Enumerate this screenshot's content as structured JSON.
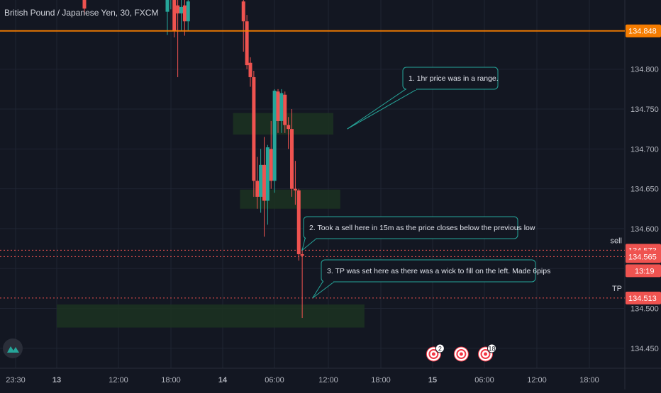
{
  "window": {
    "title": "British Pound / Japanese Yen, 30, FXCM"
  },
  "colors": {
    "background": "#131722",
    "grid": "#1f2433",
    "up": "#26a69a",
    "down": "#ef5350",
    "hline": "#f57c00",
    "zone": "#1c3321",
    "note_border": "#26a69a",
    "tag_red": "#ef5350"
  },
  "chart_data": {
    "type": "candlestick",
    "title": "British Pound / Japanese Yen, 30, FXCM",
    "ylim": [
      134.425,
      134.885
    ],
    "yticks": [
      "134.800",
      "134.750",
      "134.700",
      "134.650",
      "134.600",
      "134.550",
      "134.500",
      "134.450"
    ],
    "xticks": [
      "23:30",
      "13",
      "12:00",
      "18:00",
      "14",
      "06:00",
      "12:00",
      "18:00",
      "15",
      "06:00",
      "12:00",
      "18:00"
    ],
    "candles": [
      {
        "t": "13 04:00",
        "o": 134.905,
        "h": 134.912,
        "l": 134.868,
        "c": 134.876
      },
      {
        "t": "13 16:00",
        "o": 134.872,
        "h": 134.902,
        "l": 134.843,
        "c": 134.89
      },
      {
        "t": "13 16:30",
        "o": 134.89,
        "h": 134.92,
        "l": 134.875,
        "c": 134.905
      },
      {
        "t": "13 17:00",
        "o": 134.9,
        "h": 134.912,
        "l": 134.84,
        "c": 134.848
      },
      {
        "t": "13 17:30",
        "o": 134.88,
        "h": 134.905,
        "l": 134.79,
        "c": 134.87
      },
      {
        "t": "13 18:00",
        "o": 134.87,
        "h": 134.89,
        "l": 134.848,
        "c": 134.878
      },
      {
        "t": "13 18:30",
        "o": 134.88,
        "h": 134.91,
        "l": 134.842,
        "c": 134.86
      },
      {
        "t": "13 19:00",
        "o": 134.86,
        "h": 134.89,
        "l": 134.848,
        "c": 134.885
      },
      {
        "t": "14 03:00",
        "o": 134.885,
        "h": 134.905,
        "l": 134.822,
        "c": 134.86
      },
      {
        "t": "14 03:30",
        "o": 134.86,
        "h": 134.868,
        "l": 134.8,
        "c": 134.805
      },
      {
        "t": "14 04:00",
        "o": 134.808,
        "h": 134.815,
        "l": 134.778,
        "c": 134.79
      },
      {
        "t": "14 04:30",
        "o": 134.79,
        "h": 134.798,
        "l": 134.64,
        "c": 134.66
      },
      {
        "t": "14 05:00",
        "o": 134.66,
        "h": 134.69,
        "l": 134.625,
        "c": 134.64
      },
      {
        "t": "14 05:30",
        "o": 134.64,
        "h": 134.7,
        "l": 134.62,
        "c": 134.68
      },
      {
        "t": "14 06:00",
        "o": 134.68,
        "h": 134.715,
        "l": 134.59,
        "c": 134.635
      },
      {
        "t": "14 06:30",
        "o": 134.635,
        "h": 134.705,
        "l": 134.605,
        "c": 134.702
      },
      {
        "t": "14 07:00",
        "o": 134.7,
        "h": 134.735,
        "l": 134.65,
        "c": 134.66
      },
      {
        "t": "14 07:30",
        "o": 134.66,
        "h": 134.775,
        "l": 134.645,
        "c": 134.773
      },
      {
        "t": "14 08:00",
        "o": 134.772,
        "h": 134.775,
        "l": 134.72,
        "c": 134.735
      },
      {
        "t": "14 08:30",
        "o": 134.735,
        "h": 134.775,
        "l": 134.72,
        "c": 134.77
      },
      {
        "t": "14 09:00",
        "o": 134.768,
        "h": 134.772,
        "l": 134.72,
        "c": 134.73
      },
      {
        "t": "14 09:30",
        "o": 134.73,
        "h": 134.74,
        "l": 134.7,
        "c": 134.725
      },
      {
        "t": "14 10:00",
        "o": 134.725,
        "h": 134.75,
        "l": 134.64,
        "c": 134.65
      },
      {
        "t": "14 10:30",
        "o": 134.65,
        "h": 134.685,
        "l": 134.63,
        "c": 134.648
      },
      {
        "t": "14 11:00",
        "o": 134.648,
        "h": 134.65,
        "l": 134.56,
        "c": 134.568
      },
      {
        "t": "14 11:30",
        "o": 134.568,
        "h": 134.575,
        "l": 134.488,
        "c": 134.566
      }
    ],
    "horizontal_lines": [
      {
        "price": 134.848,
        "label": "134.848",
        "color": "#f57c00",
        "style": "solid"
      },
      {
        "price": 134.573,
        "label": "134.573",
        "color": "#ef5350",
        "style": "dotted",
        "side_label": "sell"
      },
      {
        "price": 134.565,
        "label": "134.565",
        "color": "#ef5350",
        "style": "dotted"
      },
      {
        "price": 134.513,
        "label": "134.513",
        "color": "#ef5350",
        "style": "dotted",
        "side_label": "TP"
      }
    ],
    "countdown": "13:19",
    "zones": [
      {
        "t_start": "14 01:30",
        "t_end": "14 16:00",
        "price_top": 134.745,
        "price_bottom": 134.718
      },
      {
        "t_start": "14 02:30",
        "t_end": "14 17:00",
        "price_top": 134.649,
        "price_bottom": 134.625
      },
      {
        "t_start": "13 00:00",
        "t_end": "14 20:30",
        "price_top": 134.505,
        "price_bottom": 134.476
      }
    ],
    "annotations": [
      {
        "text": "1. 1hr price was in a range.",
        "t_anchor": "14 18:00",
        "price_anchor": 134.725
      },
      {
        "text": "2. Took a sell here in 15m as the price closes below the previous low",
        "t_anchor": "14 11:30",
        "price_anchor": 134.573
      },
      {
        "text": "3. TP was set here as there was a wick to fill on the left. Made 6pips",
        "t_anchor": "14 13:00",
        "price_anchor": 134.513
      }
    ],
    "events": [
      {
        "t": "15 06:30",
        "count": "2"
      },
      {
        "t": "15 10:30",
        "count": ""
      },
      {
        "t": "15 14:00",
        "count": "18"
      }
    ]
  }
}
